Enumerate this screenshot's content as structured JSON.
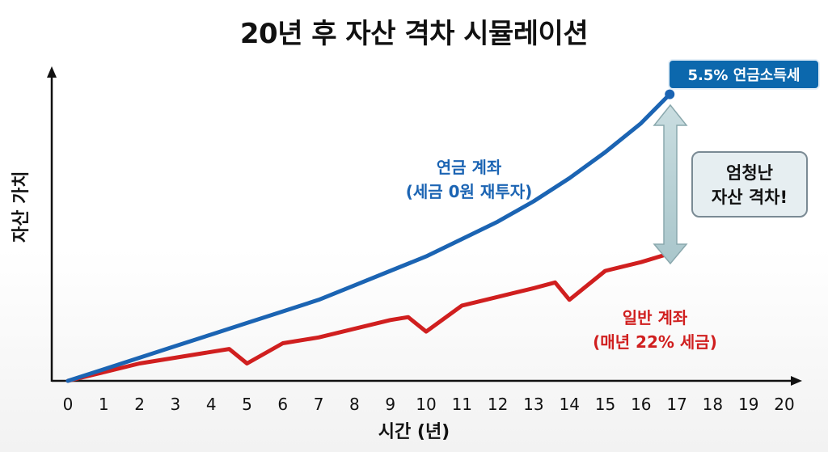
{
  "title": "20년 후 자산 격차 시뮬레이션",
  "chart_data": {
    "type": "line",
    "xlabel": "시간 (년)",
    "ylabel": "자산 가치",
    "xlim": [
      0,
      20
    ],
    "x_ticks": [
      0,
      1,
      2,
      3,
      4,
      5,
      6,
      7,
      8,
      9,
      10,
      11,
      12,
      13,
      14,
      15,
      16,
      17,
      18,
      19,
      20
    ],
    "ylim": [
      0,
      100
    ],
    "series": [
      {
        "name": "연금 계좌",
        "color": "#1b64b3",
        "x": [
          0,
          1,
          2,
          3,
          4,
          5,
          6,
          7,
          8,
          9,
          10,
          11,
          12,
          13,
          14,
          15,
          16,
          16.8
        ],
        "y": [
          0,
          4,
          8,
          12,
          16,
          20,
          24,
          28,
          33,
          38,
          43,
          49,
          55,
          62,
          70,
          79,
          89,
          99
        ]
      },
      {
        "name": "일반 계좌",
        "color": "#d01f1f",
        "x": [
          0,
          1,
          2,
          3,
          4,
          4.5,
          5,
          6,
          7,
          8,
          9,
          9.5,
          10,
          11,
          12,
          13,
          13.6,
          14,
          15,
          16,
          16.8
        ],
        "y": [
          0,
          3,
          6,
          8,
          10,
          11,
          6,
          13,
          15,
          18,
          21,
          22,
          17,
          26,
          29,
          32,
          34,
          28,
          38,
          41,
          44
        ]
      }
    ],
    "annotations": {
      "blue_label_line1": "연금 계좌",
      "blue_label_line2": "(세금 0원 재투자)",
      "red_label_line1": "일반 계좌",
      "red_label_line2": "(매년 22% 세금)",
      "badge": "5.5% 연금소득세",
      "gap_line1": "엄청난",
      "gap_line2": "자산 격차!"
    }
  }
}
